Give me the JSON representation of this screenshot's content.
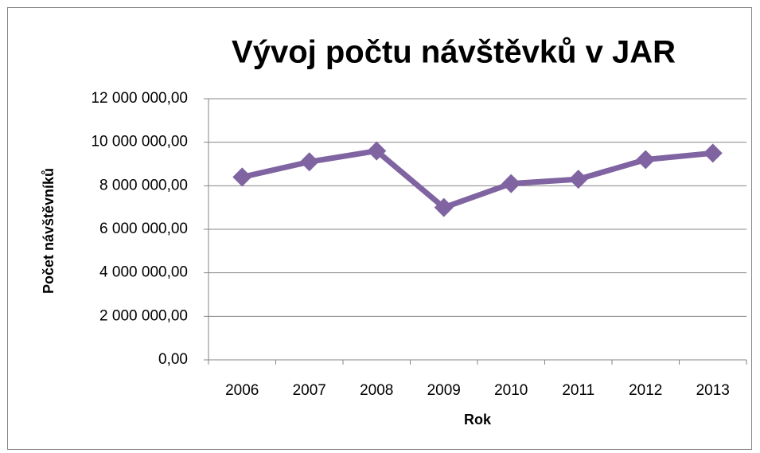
{
  "chart_data": {
    "type": "line",
    "title": "Vývoj počtu návštěvků v JAR",
    "x_label": "Rok",
    "y_label": "Počet návštěvníků",
    "categories": [
      "2006",
      "2007",
      "2008",
      "2009",
      "2010",
      "2011",
      "2012",
      "2013"
    ],
    "series": [
      {
        "name": "Počet návštěvníků",
        "color": "#8064a2",
        "values": [
          8400000,
          9100000,
          9600000,
          7000000,
          8100000,
          8300000,
          9200000,
          9500000
        ]
      }
    ],
    "ylim": [
      0,
      12000000
    ],
    "yticks": [
      {
        "value": 0,
        "label": "0,00"
      },
      {
        "value": 2000000,
        "label": "2 000 000,00"
      },
      {
        "value": 4000000,
        "label": "4 000 000,00"
      },
      {
        "value": 6000000,
        "label": "6 000 000,00"
      },
      {
        "value": 8000000,
        "label": "8 000 000,00"
      },
      {
        "value": 10000000,
        "label": "10 000 000,00"
      },
      {
        "value": 12000000,
        "label": "12 000 000,00"
      }
    ],
    "grid": true,
    "legend": false
  }
}
